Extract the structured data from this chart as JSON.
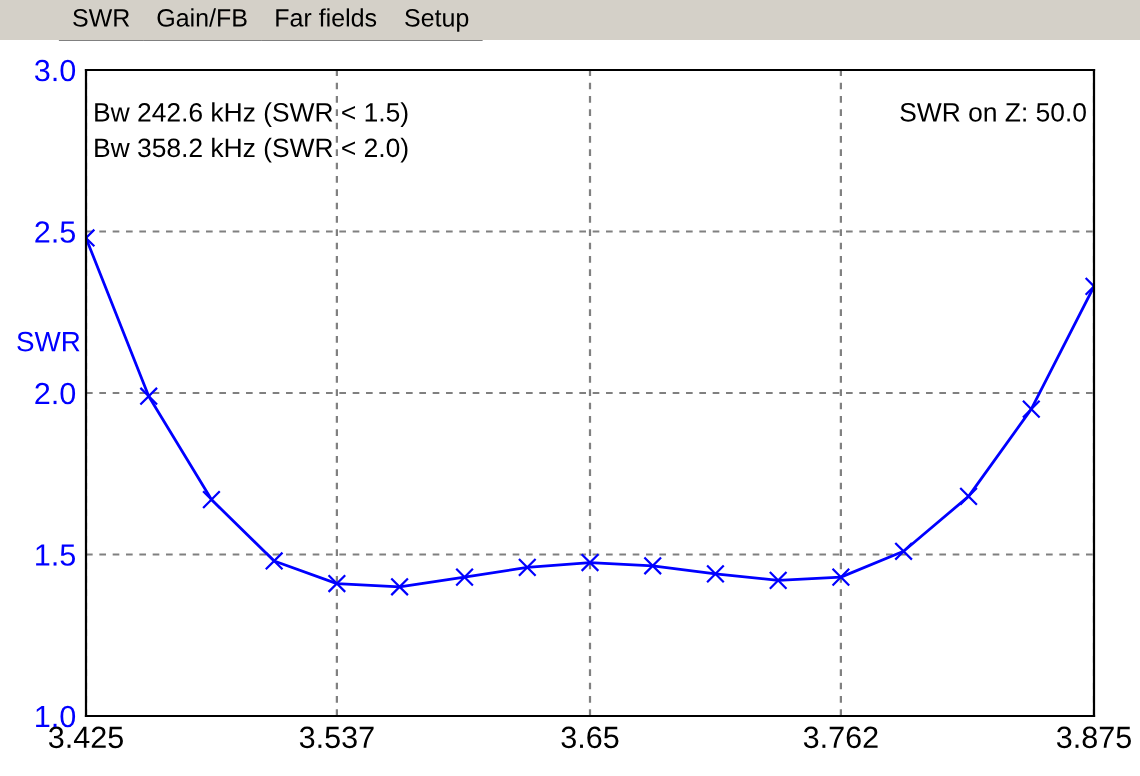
{
  "chart_data": {
    "type": "line",
    "ylabel": "SWR",
    "x": [
      3.425,
      3.453,
      3.481,
      3.509,
      3.537,
      3.565,
      3.594,
      3.622,
      3.65,
      3.678,
      3.706,
      3.734,
      3.762,
      3.79,
      3.819,
      3.847,
      3.875
    ],
    "series": [
      {
        "color": "#0000ff",
        "values": [
          2.48,
          1.99,
          1.67,
          1.48,
          1.41,
          1.4,
          1.43,
          1.46,
          1.475,
          1.465,
          1.44,
          1.42,
          1.43,
          1.51,
          1.68,
          1.95,
          2.33
        ]
      }
    ],
    "xlim": [
      3.425,
      3.875
    ],
    "ylim": [
      1.0,
      3.0
    ],
    "xticks": [
      3.425,
      3.537,
      3.65,
      3.762,
      3.875
    ],
    "yticks": [
      {
        "value": 1.0,
        "label": "1.0"
      },
      {
        "value": 1.5,
        "label": "1.5"
      },
      {
        "value": 2.0,
        "label": "2.0"
      },
      {
        "value": 2.5,
        "label": "2.5"
      },
      {
        "value": 3.0,
        "label": "3.0"
      }
    ],
    "grid": true,
    "marker": "cross",
    "line_style": "solid",
    "annotations": [
      "SWR",
      "Gain/FB",
      "Far fields",
      "Setup",
      "Bw 242.6 kHz (SWR < 1.5)",
      "Bw 358.2 kHz (SWR < 2.0)",
      "SWR on Z: 50.0"
    ]
  }
}
